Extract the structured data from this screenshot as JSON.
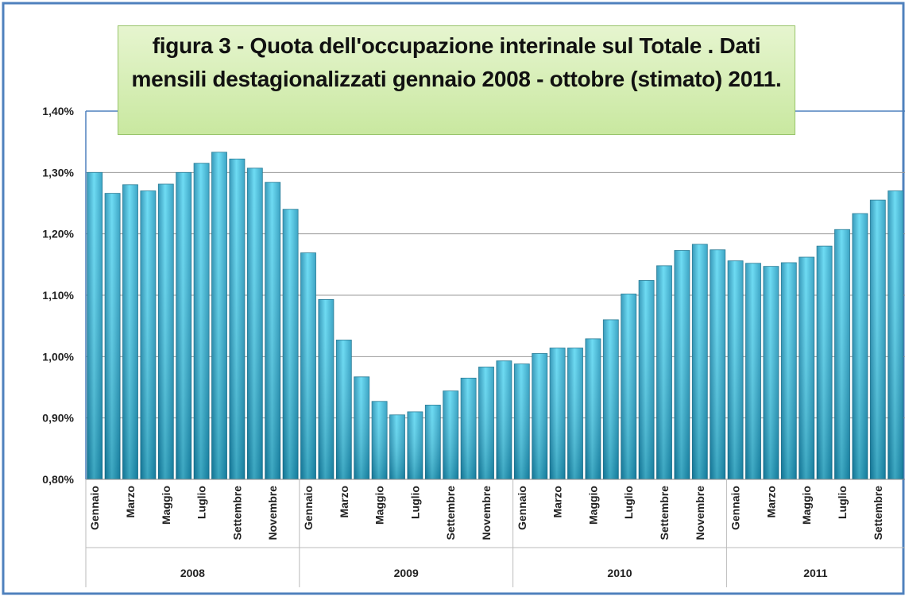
{
  "chart_data": {
    "type": "bar",
    "title": "figura 3 - Quota dell'occupazione interinale sul Totale . Dati mensili destagionalizzati gennaio 2008 - ottobre (stimato) 2011.",
    "categories": [
      "Gennaio",
      null,
      "Marzo",
      null,
      "Maggio",
      null,
      "Luglio",
      null,
      "Settembre",
      null,
      "Novembre",
      null,
      "Gennaio",
      null,
      "Marzo",
      null,
      "Maggio",
      null,
      "Luglio",
      null,
      "Settembre",
      null,
      "Novembre",
      null,
      "Gennaio",
      null,
      "Marzo",
      null,
      "Maggio",
      null,
      "Luglio",
      null,
      "Settembre",
      null,
      "Novembre",
      null,
      "Gennaio",
      null,
      "Marzo",
      null,
      "Maggio",
      null,
      "Luglio",
      null,
      "Settembre",
      null
    ],
    "years": [
      "2008",
      "2009",
      "2010",
      "2011"
    ],
    "values": [
      1.3,
      1.266,
      1.28,
      1.27,
      1.281,
      1.3,
      1.315,
      1.333,
      1.322,
      1.307,
      1.284,
      1.24,
      1.169,
      1.093,
      1.027,
      0.967,
      0.927,
      0.905,
      0.91,
      0.921,
      0.944,
      0.965,
      0.983,
      0.993,
      0.988,
      1.005,
      1.014,
      1.014,
      1.029,
      1.06,
      1.102,
      1.124,
      1.148,
      1.173,
      1.183,
      1.174,
      1.156,
      1.152,
      1.147,
      1.153,
      1.162,
      1.18,
      1.207,
      1.233,
      1.255,
      1.27
    ],
    "color": "#2bb6dc",
    "ylim": [
      0.8,
      1.4
    ],
    "yticks": [
      {
        "value": 0.8,
        "label": "0,80%"
      },
      {
        "value": 0.9,
        "label": "0,90%"
      },
      {
        "value": 1.0,
        "label": "1,00%"
      },
      {
        "value": 1.1,
        "label": "1,10%"
      },
      {
        "value": 1.2,
        "label": "1,20%"
      },
      {
        "value": 1.3,
        "label": "1,30%"
      },
      {
        "value": 1.4,
        "label": "1,40%"
      }
    ],
    "grid": true
  }
}
